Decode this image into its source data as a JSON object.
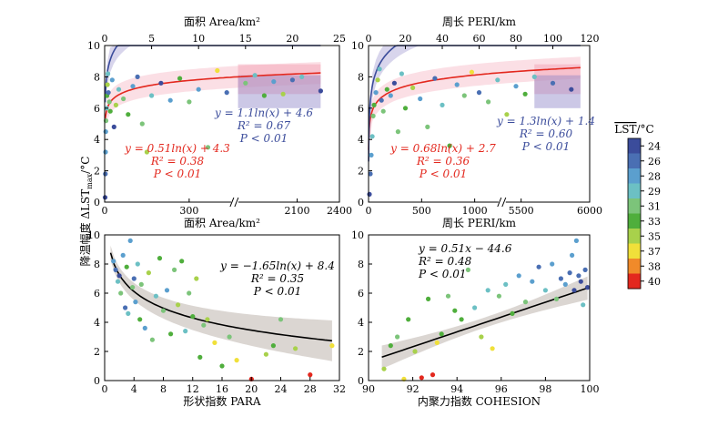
{
  "shared": {
    "ylabel": "降温幅度 ΔLST",
    "ylabel_sub": "max",
    "ylabel_unit": "/°C",
    "colorbar": {
      "title": "LST",
      "title_unit": "/°C",
      "ticks": [
        "24",
        "26",
        "28",
        "29",
        "31",
        "33",
        "35",
        "37",
        "38",
        "40"
      ],
      "colors": [
        "#3b4c9b",
        "#4a6fb3",
        "#5b9fce",
        "#6cc0c4",
        "#7cc47a",
        "#4fae3c",
        "#a8d14b",
        "#f0e03a",
        "#f08a2a",
        "#e3281e"
      ]
    }
  },
  "chart_data": [
    {
      "id": "area",
      "type": "scatter",
      "xlabel_top": "面积 Area/km²",
      "xlabel_bottom": "面积 Area/km²",
      "top_ticks": [
        "0",
        "5",
        "10",
        "15",
        "20",
        "25"
      ],
      "bottom_ticks": [
        "0",
        "300",
        "2100",
        "2400"
      ],
      "ylim": [
        0,
        10
      ],
      "yticks": [
        "0",
        "2",
        "4",
        "6",
        "8",
        "10"
      ],
      "fits": [
        {
          "color": "#e3281e",
          "eq": "y = 0.51ln(x) + 4.3",
          "r2": "R² = 0.38",
          "p": "P < 0.01"
        },
        {
          "color": "#3b4c9b",
          "eq": "y = 1.1ln(x) + 4.6",
          "r2": "R² = 0.67",
          "p": "P < 0.01"
        }
      ],
      "points": [
        [
          0.05,
          0.3,
          24
        ],
        [
          0.08,
          1.8,
          26
        ],
        [
          0.1,
          3.2,
          28
        ],
        [
          0.12,
          4.5,
          28
        ],
        [
          0.15,
          5.2,
          31
        ],
        [
          0.2,
          6.0,
          29
        ],
        [
          0.25,
          6.8,
          33
        ],
        [
          0.3,
          7.5,
          35
        ],
        [
          0.35,
          8.2,
          29
        ],
        [
          0.4,
          7.0,
          26
        ],
        [
          0.5,
          6.4,
          31
        ],
        [
          0.6,
          5.8,
          33
        ],
        [
          0.8,
          7.8,
          28
        ],
        [
          1.0,
          4.8,
          24
        ],
        [
          1.2,
          6.2,
          35
        ],
        [
          1.5,
          7.2,
          29
        ],
        [
          2.0,
          6.6,
          31
        ],
        [
          2.5,
          5.6,
          33
        ],
        [
          3.0,
          7.4,
          28
        ],
        [
          3.5,
          8.0,
          26
        ],
        [
          4.0,
          5.0,
          31
        ],
        [
          4.5,
          3.2,
          35
        ],
        [
          5.0,
          6.8,
          29
        ],
        [
          6.0,
          7.6,
          24
        ],
        [
          7.0,
          6.5,
          28
        ],
        [
          8.0,
          7.9,
          33
        ],
        [
          9.0,
          6.4,
          31
        ],
        [
          10.0,
          7.2,
          28
        ],
        [
          11.0,
          3.5,
          31
        ],
        [
          12.0,
          8.4,
          37
        ],
        [
          13.0,
          7.0,
          26
        ],
        [
          15.0,
          7.6,
          31
        ],
        [
          16.0,
          8.1,
          29
        ],
        [
          17.0,
          6.8,
          33
        ],
        [
          18.0,
          7.7,
          28
        ],
        [
          19.0,
          6.9,
          35
        ],
        [
          20.0,
          7.8,
          26
        ],
        [
          21.0,
          8.0,
          29
        ],
        [
          23.0,
          7.1,
          24
        ]
      ]
    },
    {
      "id": "peri",
      "type": "scatter",
      "xlabel_top": "周长 PERI/km",
      "xlabel_bottom": "周长 PERI/km",
      "top_ticks": [
        "0",
        "20",
        "40",
        "60",
        "80",
        "100",
        "120"
      ],
      "bottom_ticks": [
        "0",
        "500",
        "1000",
        "5500",
        "6000"
      ],
      "ylim": [
        0,
        10
      ],
      "yticks": [
        "0",
        "2",
        "4",
        "6",
        "8",
        "10"
      ],
      "fits": [
        {
          "color": "#e3281e",
          "eq": "y = 0.68ln(x) + 2.7",
          "r2": "R² = 0.36",
          "p": "P < 0.01"
        },
        {
          "color": "#3b4c9b",
          "eq": "y = 1.3ln(x) + 1.4",
          "r2": "R² = 0.60",
          "p": "P < 0.01"
        }
      ],
      "points": [
        [
          0.5,
          0.5,
          24
        ],
        [
          1,
          1.8,
          26
        ],
        [
          1.5,
          3.0,
          28
        ],
        [
          2,
          4.2,
          29
        ],
        [
          2.5,
          5.5,
          31
        ],
        [
          3,
          6.2,
          33
        ],
        [
          4,
          7.0,
          28
        ],
        [
          5,
          7.8,
          35
        ],
        [
          6,
          8.5,
          29
        ],
        [
          7,
          6.5,
          26
        ],
        [
          8,
          5.8,
          31
        ],
        [
          10,
          7.2,
          33
        ],
        [
          12,
          6.8,
          28
        ],
        [
          14,
          7.6,
          24
        ],
        [
          16,
          4.5,
          31
        ],
        [
          18,
          8.2,
          29
        ],
        [
          20,
          6.0,
          33
        ],
        [
          24,
          7.3,
          35
        ],
        [
          28,
          6.6,
          28
        ],
        [
          32,
          4.8,
          31
        ],
        [
          36,
          7.9,
          26
        ],
        [
          40,
          6.2,
          29
        ],
        [
          44,
          3.6,
          33
        ],
        [
          48,
          7.5,
          28
        ],
        [
          52,
          6.8,
          31
        ],
        [
          56,
          8.3,
          37
        ],
        [
          60,
          7.0,
          26
        ],
        [
          65,
          6.4,
          31
        ],
        [
          70,
          7.8,
          29
        ],
        [
          75,
          5.6,
          35
        ],
        [
          80,
          7.4,
          28
        ],
        [
          85,
          6.9,
          33
        ],
        [
          90,
          8.0,
          29
        ],
        [
          100,
          7.6,
          26
        ],
        [
          110,
          7.2,
          24
        ]
      ]
    },
    {
      "id": "para",
      "type": "scatter",
      "xlabel_bottom": "形状指数 PARA",
      "xlim": [
        0,
        32
      ],
      "xticks": [
        "0",
        "4",
        "8",
        "12",
        "16",
        "20",
        "24",
        "28",
        "32"
      ],
      "ylim": [
        0,
        10
      ],
      "yticks": [
        "0",
        "2",
        "4",
        "6",
        "8",
        "10"
      ],
      "fits": [
        {
          "color": "#000000",
          "eq": "y = −1.65ln(x) + 8.4",
          "r2": "R² = 0.35",
          "p": "P < 0.01"
        }
      ],
      "points": [
        [
          1.2,
          8.2,
          28
        ],
        [
          1.5,
          7.6,
          26
        ],
        [
          1.8,
          6.8,
          29
        ],
        [
          2.0,
          7.2,
          24
        ],
        [
          2.2,
          6.0,
          31
        ],
        [
          2.5,
          8.6,
          28
        ],
        [
          2.8,
          5.0,
          26
        ],
        [
          3.0,
          7.8,
          33
        ],
        [
          3.2,
          4.6,
          29
        ],
        [
          3.5,
          9.6,
          28
        ],
        [
          3.8,
          6.4,
          31
        ],
        [
          4.0,
          7.0,
          26
        ],
        [
          4.2,
          5.4,
          28
        ],
        [
          4.5,
          8.0,
          29
        ],
        [
          4.8,
          4.2,
          33
        ],
        [
          5.0,
          6.6,
          31
        ],
        [
          5.5,
          3.6,
          28
        ],
        [
          6.0,
          7.4,
          35
        ],
        [
          6.5,
          2.8,
          31
        ],
        [
          7.0,
          5.8,
          29
        ],
        [
          7.5,
          8.4,
          33
        ],
        [
          8.0,
          4.8,
          31
        ],
        [
          8.5,
          6.2,
          28
        ],
        [
          9.0,
          3.2,
          33
        ],
        [
          9.5,
          7.6,
          31
        ],
        [
          10.0,
          5.2,
          35
        ],
        [
          10.5,
          8.2,
          33
        ],
        [
          11.0,
          3.4,
          29
        ],
        [
          11.5,
          6.0,
          31
        ],
        [
          12.0,
          4.4,
          33
        ],
        [
          12.5,
          7.0,
          35
        ],
        [
          13.0,
          1.6,
          33
        ],
        [
          13.5,
          3.8,
          31
        ],
        [
          14.0,
          4.2,
          35
        ],
        [
          15.0,
          2.6,
          37
        ],
        [
          16.0,
          1.0,
          33
        ],
        [
          17.0,
          3.0,
          31
        ],
        [
          18.0,
          1.4,
          37
        ],
        [
          20.0,
          0.1,
          40
        ],
        [
          22.0,
          1.8,
          35
        ],
        [
          23.0,
          2.4,
          33
        ],
        [
          24.0,
          4.2,
          31
        ],
        [
          26.0,
          2.2,
          35
        ],
        [
          28.0,
          0.4,
          40
        ],
        [
          31.0,
          2.4,
          37
        ]
      ]
    },
    {
      "id": "cohesion",
      "type": "scatter",
      "xlabel_bottom": "内聚力指数 COHESION",
      "xlim": [
        90,
        100
      ],
      "xticks": [
        "90",
        "92",
        "94",
        "96",
        "98",
        "100"
      ],
      "ylim": [
        0,
        10
      ],
      "yticks": [
        "0",
        "2",
        "4",
        "6",
        "8",
        "10"
      ],
      "fits": [
        {
          "color": "#000000",
          "eq": "y = 0.51x − 44.6",
          "r2": "R² = 0.48",
          "p": "P < 0.01"
        }
      ],
      "points": [
        [
          90.7,
          0.8,
          35
        ],
        [
          91.0,
          2.4,
          33
        ],
        [
          91.3,
          3.0,
          31
        ],
        [
          91.6,
          0.1,
          37
        ],
        [
          91.8,
          4.2,
          33
        ],
        [
          92.1,
          2.0,
          35
        ],
        [
          92.4,
          0.2,
          40
        ],
        [
          92.7,
          5.6,
          33
        ],
        [
          92.9,
          0.4,
          40
        ],
        [
          93.1,
          2.6,
          37
        ],
        [
          93.3,
          3.2,
          33
        ],
        [
          93.6,
          5.8,
          31
        ],
        [
          93.9,
          4.8,
          33
        ],
        [
          94.2,
          4.2,
          33
        ],
        [
          94.5,
          7.6,
          31
        ],
        [
          94.8,
          5.0,
          29
        ],
        [
          95.1,
          3.0,
          35
        ],
        [
          95.4,
          6.2,
          29
        ],
        [
          95.6,
          2.2,
          37
        ],
        [
          95.9,
          5.8,
          31
        ],
        [
          96.2,
          6.6,
          29
        ],
        [
          96.5,
          4.6,
          33
        ],
        [
          96.8,
          7.2,
          28
        ],
        [
          97.1,
          5.4,
          31
        ],
        [
          97.4,
          6.8,
          28
        ],
        [
          97.7,
          7.8,
          26
        ],
        [
          98.0,
          6.2,
          29
        ],
        [
          98.3,
          8.0,
          28
        ],
        [
          98.5,
          5.6,
          31
        ],
        [
          98.7,
          7.0,
          26
        ],
        [
          98.9,
          6.6,
          28
        ],
        [
          99.1,
          7.4,
          26
        ],
        [
          99.2,
          8.6,
          28
        ],
        [
          99.3,
          6.2,
          24
        ],
        [
          99.4,
          9.6,
          28
        ],
        [
          99.5,
          7.2,
          26
        ],
        [
          99.6,
          6.8,
          24
        ],
        [
          99.7,
          5.2,
          29
        ],
        [
          99.8,
          7.6,
          26
        ],
        [
          99.9,
          6.4,
          24
        ]
      ]
    }
  ]
}
